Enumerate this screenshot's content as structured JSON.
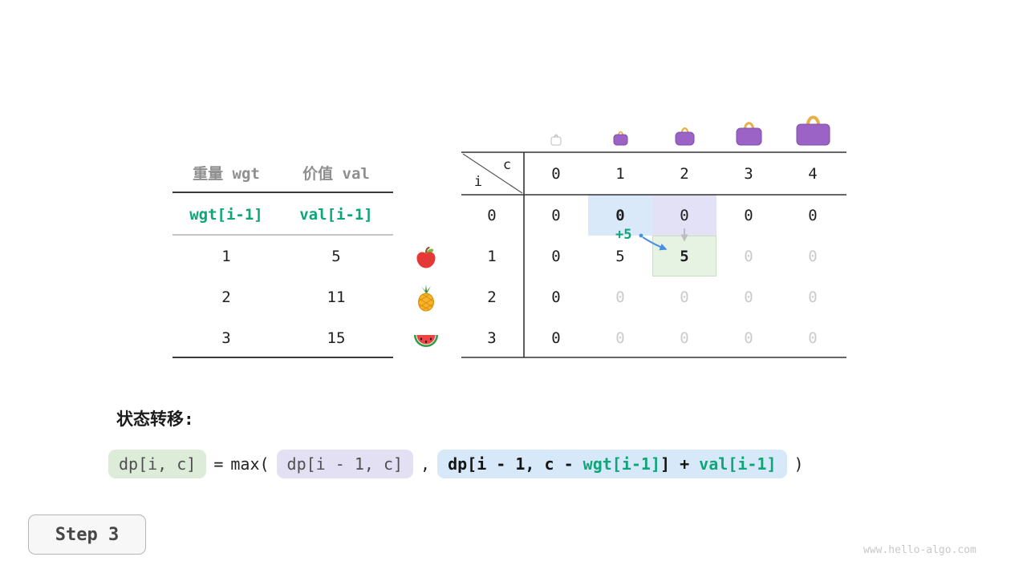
{
  "page": {
    "transition_label": "状态转移:",
    "step_label": "Step 3",
    "watermark": "www.hello-algo.com"
  },
  "items_table": {
    "col_headers": [
      "重量 wgt",
      "价值 val"
    ],
    "formula_row": [
      "wgt[i-1]",
      "val[i-1]"
    ],
    "rows": [
      {
        "wgt": "1",
        "val": "5",
        "icon": "apple-icon"
      },
      {
        "wgt": "2",
        "val": "11",
        "icon": "pineapple-icon"
      },
      {
        "wgt": "3",
        "val": "15",
        "icon": "watermelon-icon"
      }
    ]
  },
  "dp_table": {
    "corner": {
      "top": "c",
      "bottom": "i"
    },
    "col_headers": [
      "0",
      "1",
      "2",
      "3",
      "4"
    ],
    "row_headers": [
      "0",
      "1",
      "2",
      "3"
    ],
    "cells": [
      [
        "0",
        "0",
        "0",
        "0",
        "0"
      ],
      [
        "0",
        "5",
        "5",
        "0",
        "0"
      ],
      [
        "0",
        "0",
        "0",
        "0",
        "0"
      ],
      [
        "0",
        "0",
        "0",
        "0",
        "0"
      ]
    ],
    "cell_styles": [
      [
        "plain",
        "hl-blue bold",
        "hl-purple",
        "plain",
        "plain"
      ],
      [
        "plain",
        "plain",
        "hl-green bold",
        "dim",
        "dim"
      ],
      [
        "plain",
        "dim",
        "dim",
        "dim",
        "dim"
      ],
      [
        "plain",
        "dim",
        "dim",
        "dim",
        "dim"
      ]
    ],
    "annotation": "+5",
    "capacity_icons": [
      "bag-empty-icon",
      "bag-small-icon",
      "bag-medium-icon",
      "bag-large-icon",
      "bag-xlarge-icon"
    ]
  },
  "formula": {
    "lhs": "dp[i, c]",
    "equals": "=",
    "max_open": "max(",
    "term1": "dp[i - 1, c]",
    "comma": ",",
    "term2": [
      {
        "text": "dp[i - 1, c - ",
        "color": "black"
      },
      {
        "text": "wgt[i-1]",
        "color": "green"
      },
      {
        "text": "] + ",
        "color": "black"
      },
      {
        "text": "val[i-1]",
        "color": "green"
      }
    ],
    "close_paren": ")"
  },
  "colors": {
    "green": "#0ca678",
    "arrow_blue": "#4a90e2",
    "hl_blue": "#d9e9fa",
    "hl_purple": "#e3e1f6",
    "hl_green": "#e6f2e2",
    "bag_purple": "#9b63c6",
    "bag_handle": "#e8b04b"
  }
}
